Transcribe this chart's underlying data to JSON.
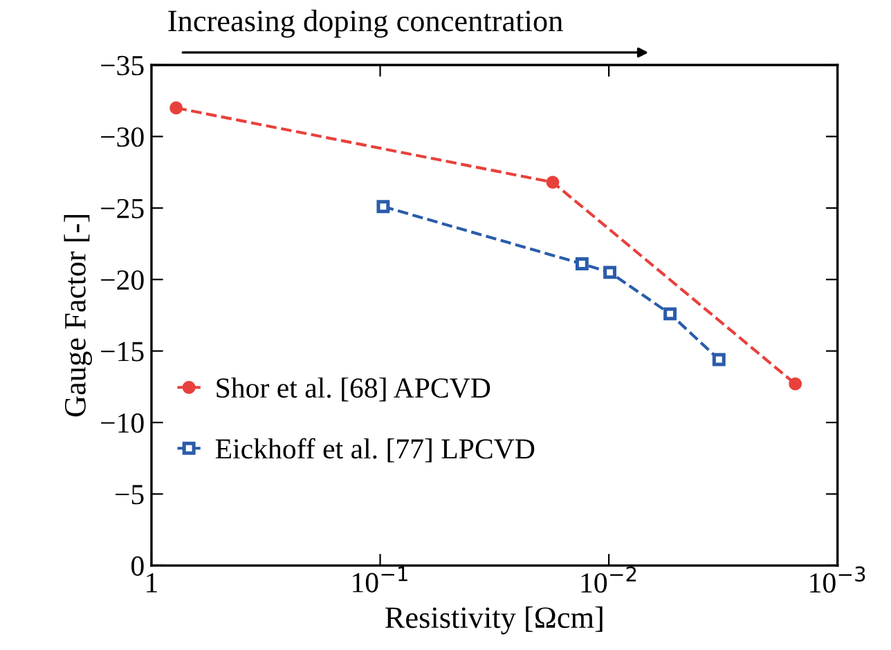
{
  "chart_data": {
    "type": "line",
    "xlabel": "Resistivity [Ωcm]",
    "ylabel": "Gauge Factor [-]",
    "log": "x",
    "xlim": [
      1,
      0.001
    ],
    "ylim": [
      0,
      -35
    ],
    "xticks": [
      {
        "value": 1,
        "label": "1"
      },
      {
        "value": 0.1,
        "label": "10$^{−1}$"
      },
      {
        "value": 0.01,
        "label": "10$^{−2}$"
      },
      {
        "value": 0.001,
        "label": "10$^{−3}$"
      }
    ],
    "yticks": [
      {
        "value": 0,
        "label": "0"
      },
      {
        "value": -5,
        "label": "−5"
      },
      {
        "value": -10,
        "label": "−10"
      },
      {
        "value": -15,
        "label": "−15"
      },
      {
        "value": -20,
        "label": "−20"
      },
      {
        "value": -25,
        "label": "−25"
      },
      {
        "value": -30,
        "label": "−30"
      },
      {
        "value": -35,
        "label": "−35"
      }
    ],
    "series": [
      {
        "name": "Shor et al. [68] APCVD",
        "color": "#e8413c",
        "marker": "circle",
        "line_style": "dashed",
        "x": [
          0.78,
          0.0176,
          0.00153
        ],
        "values": [
          -32.0,
          -26.8,
          -12.7
        ]
      },
      {
        "name": "Eickhoff et al. [77] LPCVD",
        "color": "#2a5caa",
        "marker": "square",
        "line_style": "dashed",
        "x": [
          0.097,
          0.0131,
          0.0099,
          0.0054,
          0.0033
        ],
        "values": [
          -25.1,
          -21.1,
          -20.5,
          -17.6,
          -14.4
        ]
      }
    ],
    "annotations": [
      "Increasing doping concentration"
    ],
    "grid": false,
    "legend": "bottom left"
  }
}
